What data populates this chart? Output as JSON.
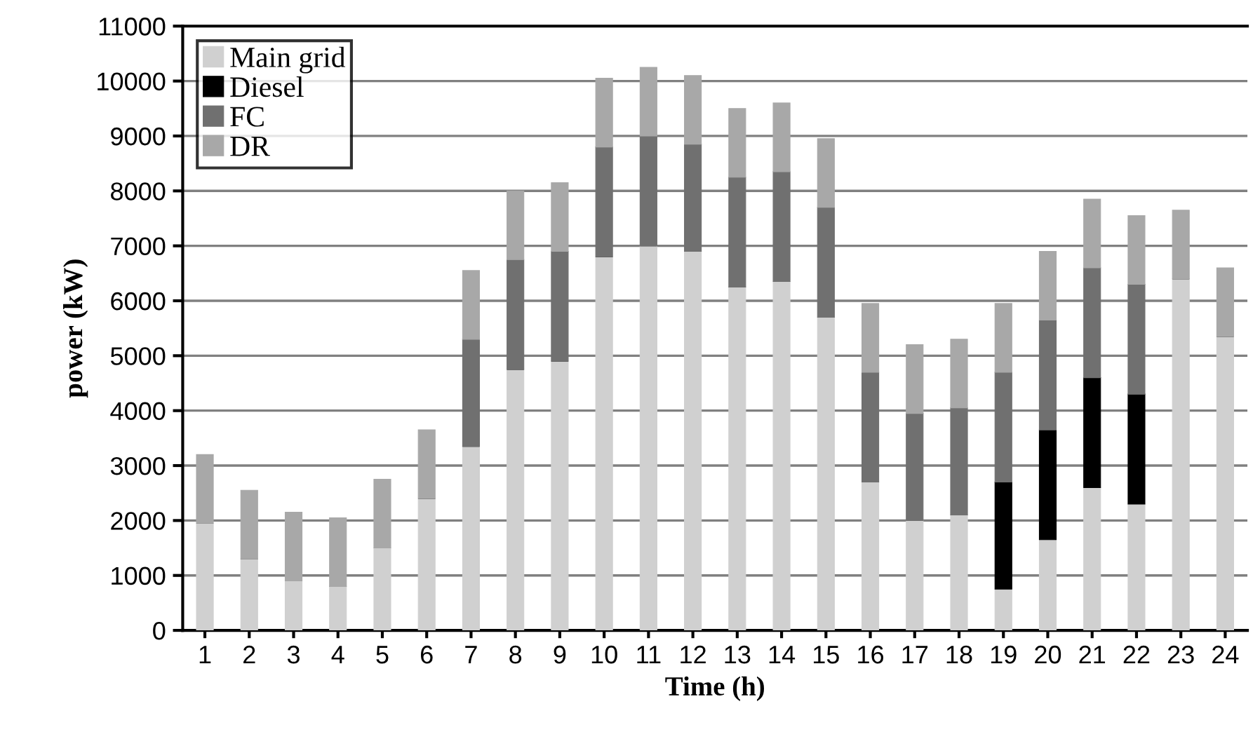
{
  "chart_data": {
    "type": "bar",
    "stacked": true,
    "xlabel": "Time (h)",
    "ylabel": "power (kW)",
    "categories": [
      "1",
      "2",
      "3",
      "4",
      "5",
      "6",
      "7",
      "8",
      "9",
      "10",
      "11",
      "12",
      "13",
      "14",
      "15",
      "16",
      "17",
      "18",
      "19",
      "20",
      "21",
      "22",
      "23",
      "24"
    ],
    "series": [
      {
        "name": "Main grid",
        "color": "#d0d0d0",
        "values": [
          1950,
          1300,
          900,
          800,
          1500,
          2400,
          3350,
          4750,
          4900,
          6800,
          7000,
          6900,
          6250,
          6350,
          5700,
          2700,
          2000,
          2100,
          750,
          1650,
          2600,
          2300,
          6400,
          5350
        ]
      },
      {
        "name": "Diesel",
        "color": "#000000",
        "values": [
          0,
          0,
          0,
          0,
          0,
          0,
          0,
          0,
          0,
          0,
          0,
          0,
          0,
          0,
          0,
          0,
          0,
          0,
          1950,
          2000,
          2000,
          2000,
          0,
          0
        ]
      },
      {
        "name": "FC",
        "color": "#707070",
        "values": [
          0,
          0,
          0,
          0,
          0,
          0,
          1950,
          2000,
          2000,
          2000,
          2000,
          1950,
          2000,
          2000,
          2000,
          2000,
          1950,
          1950,
          2000,
          2000,
          2000,
          2000,
          0,
          0
        ]
      },
      {
        "name": "DR",
        "color": "#a8a8a8",
        "values": [
          1250,
          1250,
          1250,
          1250,
          1250,
          1250,
          1250,
          1250,
          1250,
          1250,
          1250,
          1250,
          1250,
          1250,
          1250,
          1250,
          1250,
          1250,
          1250,
          1250,
          1250,
          1250,
          1250,
          1250
        ]
      }
    ],
    "ylim": [
      0,
      11000
    ],
    "yticks": [
      0,
      1000,
      2000,
      3000,
      4000,
      5000,
      6000,
      7000,
      8000,
      9000,
      10000,
      11000
    ],
    "grid": "y",
    "legend": "top left"
  }
}
